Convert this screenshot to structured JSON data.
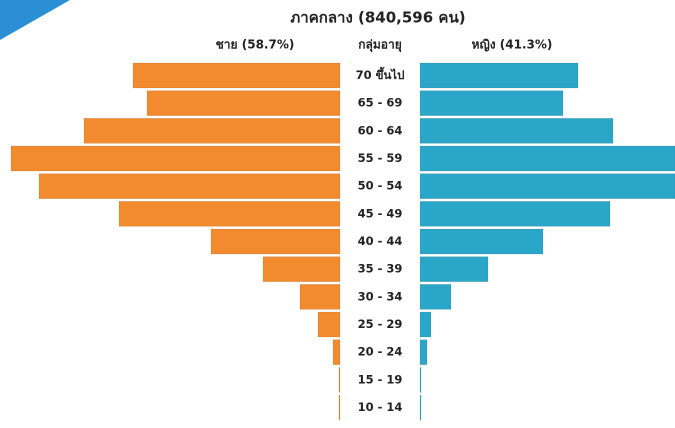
{
  "chart_data": {
    "type": "pyramid",
    "title": "ภาคกลาง (840,596 คน)",
    "y_label": "กลุ่มอายุ",
    "categories": [
      "70 ขึ้นไป",
      "65 - 69",
      "60 - 64",
      "55 - 59",
      "50 - 54",
      "45 - 49",
      "40 - 44",
      "35 - 39",
      "30 - 34",
      "25 - 29",
      "20 - 24",
      "15 - 19",
      "10 - 14"
    ],
    "series": [
      {
        "name": "ชาย (58.7%)",
        "color": "#f28a2e",
        "values": [
          207,
          193,
          256,
          329,
          301,
          221,
          129,
          77,
          40,
          22,
          7,
          1,
          1
        ]
      },
      {
        "name": "หญิง (41.3%)",
        "color": "#2aa6c8",
        "values": [
          158,
          143,
          193,
          255,
          255,
          190,
          123,
          68,
          31,
          11,
          7,
          1,
          1
        ]
      }
    ],
    "xlim": [
      0,
      330
    ]
  }
}
